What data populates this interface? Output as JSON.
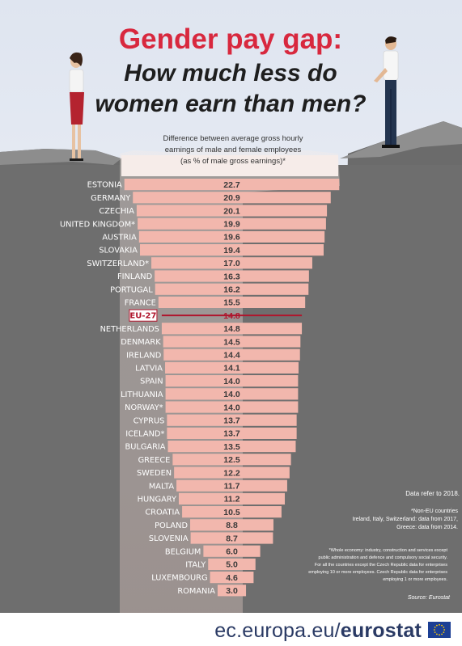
{
  "title": {
    "line1": "Gender pay gap:",
    "line2": "How much less do",
    "line3": "women earn than men?"
  },
  "subtitle": {
    "line1": "Difference between average gross hourly",
    "line2": "earnings of male and female employees",
    "line3": "(as % of male gross earnings)*"
  },
  "chart_data": {
    "type": "bar",
    "orientation": "horizontal",
    "value_unit": "% of male gross earnings",
    "categories": [
      "ESTONIA",
      "GERMANY",
      "CZECHIA",
      "UNITED KINGDOM*",
      "AUSTRIA",
      "SLOVAKIA",
      "SWITZERLAND*",
      "FINLAND",
      "PORTUGAL",
      "FRANCE",
      "EU-27",
      "NETHERLANDS",
      "DENMARK",
      "IRELAND",
      "LATVIA",
      "SPAIN",
      "LITHUANIA",
      "NORWAY*",
      "CYPRUS",
      "ICELAND*",
      "BULGARIA",
      "GREECE",
      "SWEDEN",
      "MALTA",
      "HUNGARY",
      "CROATIA",
      "POLAND",
      "SLOVENIA",
      "BELGIUM",
      "ITALY",
      "LUXEMBOURG",
      "ROMANIA"
    ],
    "values": [
      22.7,
      20.9,
      20.1,
      19.9,
      19.6,
      19.4,
      17.0,
      16.3,
      16.2,
      15.5,
      14.8,
      14.8,
      14.5,
      14.4,
      14.1,
      14.0,
      14.0,
      14.0,
      13.7,
      13.7,
      13.5,
      12.5,
      12.2,
      11.7,
      11.2,
      10.5,
      8.8,
      8.7,
      6.0,
      5.0,
      4.6,
      3.0
    ],
    "value_labels": [
      "22.7",
      "20.9",
      "20.1",
      "19.9",
      "19.6",
      "19.4",
      "17.0",
      "16.3",
      "16.2",
      "15.5",
      "14.8",
      "14.8",
      "14.5",
      "14.4",
      "14.1",
      "14.0",
      "14.0",
      "14.0",
      "13.7",
      "13.7",
      "13.5",
      "12.5",
      "12.2",
      "11.7",
      "11.2",
      "10.5",
      "8.8",
      "8.7",
      "6.0",
      "5.0",
      "4.6",
      "3.0"
    ],
    "highlight": "EU-27",
    "grid": false
  },
  "notes": {
    "data_year": "Data refer to 2018.",
    "non_eu": [
      "*Non-EU countries",
      "Ireland, Italy, Switzerland: data from 2017,",
      "Greece: data from 2014."
    ],
    "whole_economy": [
      "*Whole economy: industry, construction and services except",
      "public administration and defence and compulsory social security.",
      "For all the countries except the Czech Republic data for enterprises",
      "employing 10 or more employees. Czech Republic data for enterprises",
      "employing 1 or more employees."
    ],
    "source": "Source: Eurostat"
  },
  "footer": {
    "url_plain": "ec.europa.eu/",
    "url_bold": "eurostat"
  },
  "colors": {
    "bar": "#f2b7ad",
    "title_red": "#d8283e",
    "title_dark": "#1e1e1e",
    "ground": "#6e6e6e",
    "sky": "#e9edf4",
    "eu_line": "#b0152c",
    "flag_blue": "#1c3f94",
    "flag_star": "#ffcc00"
  },
  "icons": [
    "woman-figure",
    "man-figure",
    "eu-flag-icon"
  ]
}
